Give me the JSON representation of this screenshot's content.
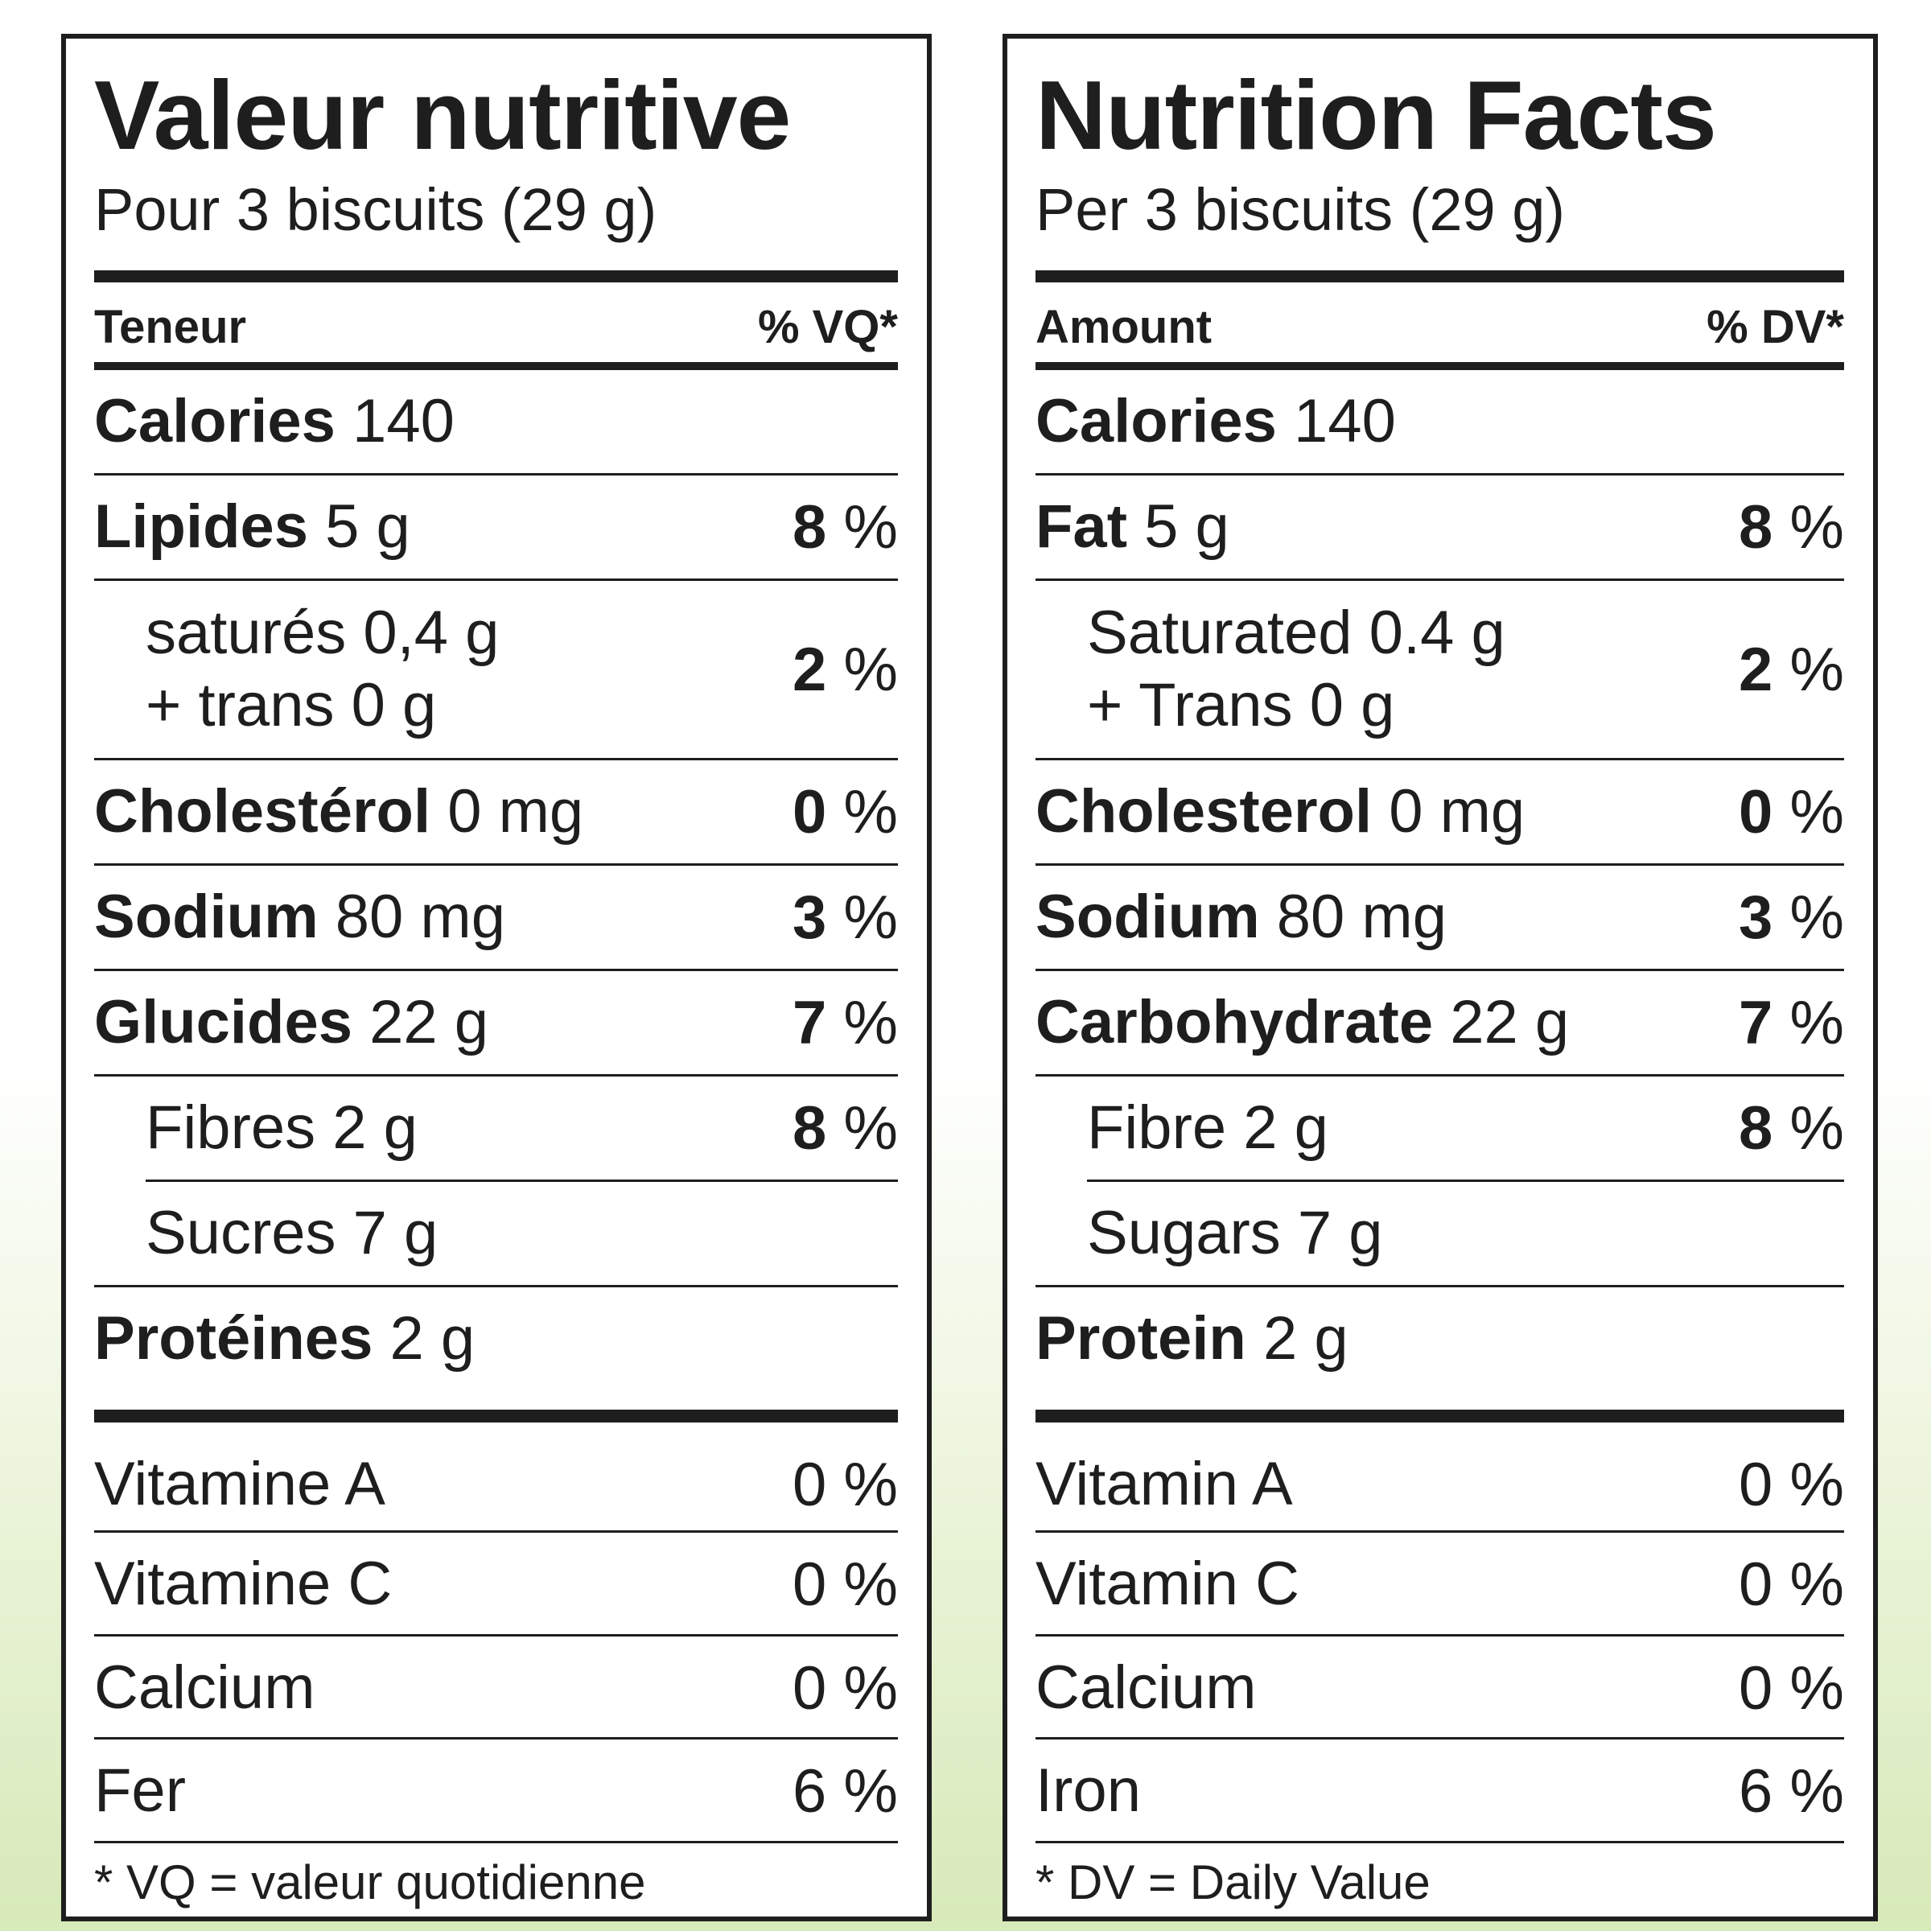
{
  "french": {
    "title": "Valeur nutritive",
    "serving": "Pour 3 biscuits (29 g)",
    "header_amount": "Teneur",
    "header_dv": "% VQ*",
    "calories": {
      "label": "Calories",
      "value": "140"
    },
    "fat": {
      "label": "Lipides",
      "value": "5 g",
      "dv_num": "8",
      "dv_unit": "%"
    },
    "saturated": {
      "line1": "saturés 0,4 g",
      "line2": "+ trans 0 g",
      "dv_num": "2",
      "dv_unit": "%"
    },
    "cholesterol": {
      "label": "Cholestérol",
      "value": "0 mg",
      "dv_num": "0",
      "dv_unit": "%"
    },
    "sodium": {
      "label": "Sodium",
      "value": "80 mg",
      "dv_num": "3",
      "dv_unit": "%"
    },
    "carbohydrate": {
      "label": "Glucides",
      "value": "22 g",
      "dv_num": "7",
      "dv_unit": "%"
    },
    "fibre": {
      "label": "Fibres 2 g",
      "dv_num": "8",
      "dv_unit": "%"
    },
    "sugars": {
      "label": "Sucres 7 g"
    },
    "protein": {
      "label": "Protéines",
      "value": "2 g"
    },
    "vitamin_a": {
      "label": "Vitamine A",
      "dv": "0 %"
    },
    "vitamin_c": {
      "label": "Vitamine C",
      "dv": "0 %"
    },
    "calcium": {
      "label": "Calcium",
      "dv": "0 %"
    },
    "iron": {
      "label": "Fer",
      "dv": "6 %"
    },
    "footnote": "* VQ = valeur quotidienne"
  },
  "english": {
    "title": "Nutrition Facts",
    "serving": "Per 3 biscuits (29 g)",
    "header_amount": "Amount",
    "header_dv": "% DV*",
    "calories": {
      "label": "Calories",
      "value": "140"
    },
    "fat": {
      "label": "Fat",
      "value": "5 g",
      "dv_num": "8",
      "dv_unit": "%"
    },
    "saturated": {
      "line1": "Saturated 0.4 g",
      "line2": "+ Trans 0 g",
      "dv_num": "2",
      "dv_unit": "%"
    },
    "cholesterol": {
      "label": "Cholesterol",
      "value": "0 mg",
      "dv_num": "0",
      "dv_unit": "%"
    },
    "sodium": {
      "label": "Sodium",
      "value": "80 mg",
      "dv_num": "3",
      "dv_unit": "%"
    },
    "carbohydrate": {
      "label": "Carbohydrate",
      "value": "22 g",
      "dv_num": "7",
      "dv_unit": "%"
    },
    "fibre": {
      "label": "Fibre 2 g",
      "dv_num": "8",
      "dv_unit": "%"
    },
    "sugars": {
      "label": "Sugars 7 g"
    },
    "protein": {
      "label": "Protein",
      "value": "2 g"
    },
    "vitamin_a": {
      "label": "Vitamin A",
      "dv": "0 %"
    },
    "vitamin_c": {
      "label": "Vitamin C",
      "dv": "0 %"
    },
    "calcium": {
      "label": "Calcium",
      "dv": "0 %"
    },
    "iron": {
      "label": "Iron",
      "dv": "6 %"
    },
    "footnote": "* DV = Daily Value"
  },
  "colors": {
    "ink": "#1e1e1e",
    "background_tint": "#d7eab9"
  }
}
